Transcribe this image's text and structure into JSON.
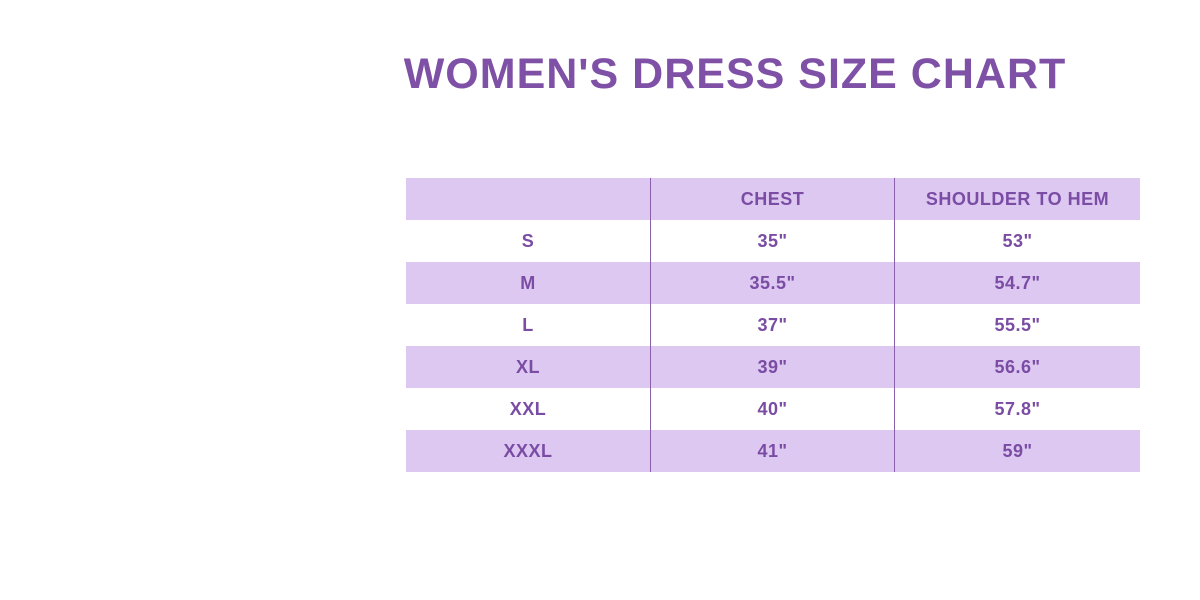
{
  "title": {
    "text": "WOMEN'S DRESS SIZE CHART"
  },
  "table": {
    "columns": [
      "",
      "CHEST",
      "SHOULDER TO HEM"
    ],
    "rows": [
      [
        "S",
        "35\"",
        "53\""
      ],
      [
        "M",
        "35.5\"",
        "54.7\""
      ],
      [
        "L",
        "37\"",
        "55.5\""
      ],
      [
        "XL",
        "39\"",
        "56.6\""
      ],
      [
        "XXL",
        "40\"",
        "57.8\""
      ],
      [
        "XXXL",
        "41\"",
        "59\""
      ]
    ]
  },
  "colors": {
    "title": "#7e51a6",
    "table_text": "#7a4ca4",
    "band": "#ddc8f1",
    "white_row": "#ffffff",
    "divider": "#8a5fae",
    "background": "#ffffff"
  },
  "chart_data": {
    "type": "table",
    "title": "WOMEN'S DRESS SIZE CHART",
    "columns": [
      "",
      "CHEST",
      "SHOULDER TO HEM"
    ],
    "rows": [
      [
        "S",
        "35\"",
        "53\""
      ],
      [
        "M",
        "35.5\"",
        "54.7\""
      ],
      [
        "L",
        "37\"",
        "55.5\""
      ],
      [
        "XL",
        "39\"",
        "56.6\""
      ],
      [
        "XXL",
        "40\"",
        "57.8\""
      ],
      [
        "XXXL",
        "41\"",
        "59\""
      ]
    ],
    "layout": {
      "banded_rows": true,
      "header_background": "#ddc8f1",
      "band_background": "#ddc8f1",
      "vertical_dividers": true,
      "horizontal_dividers": false
    }
  }
}
